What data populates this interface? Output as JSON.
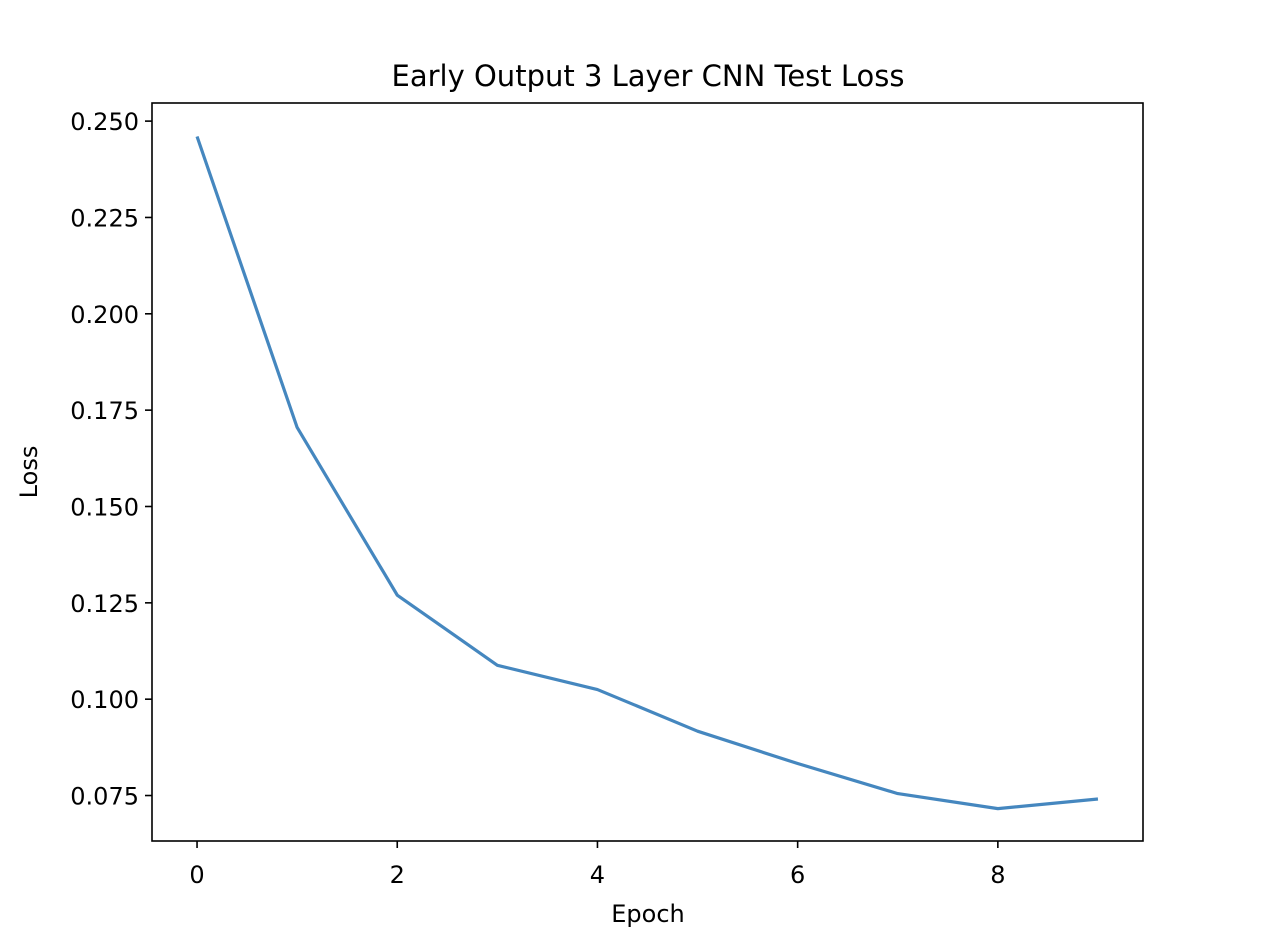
{
  "chart_data": {
    "type": "line",
    "title": "Early Output 3 Layer CNN Test Loss",
    "xlabel": "Epoch",
    "ylabel": "Loss",
    "x": [
      0,
      1,
      2,
      3,
      4,
      5,
      6,
      7,
      8,
      9
    ],
    "series": [
      {
        "values": [
          0.246,
          0.1705,
          0.127,
          0.1088,
          0.1025,
          0.0917,
          0.0833,
          0.0755,
          0.0716,
          0.0741
        ],
        "color": "#4587bf"
      }
    ],
    "xticks": [
      0,
      2,
      4,
      6,
      8
    ],
    "xtick_labels": [
      "0",
      "2",
      "4",
      "6",
      "8"
    ],
    "yticks": [
      0.075,
      0.1,
      0.125,
      0.15,
      0.175,
      0.2,
      0.225,
      0.25
    ],
    "ytick_labels": [
      "0.075",
      "0.100",
      "0.125",
      "0.150",
      "0.175",
      "0.200",
      "0.225",
      "0.250"
    ],
    "xlim": [
      -0.45,
      9.45
    ],
    "ylim": [
      0.0632,
      0.2547
    ],
    "grid": false,
    "legend": "none"
  }
}
